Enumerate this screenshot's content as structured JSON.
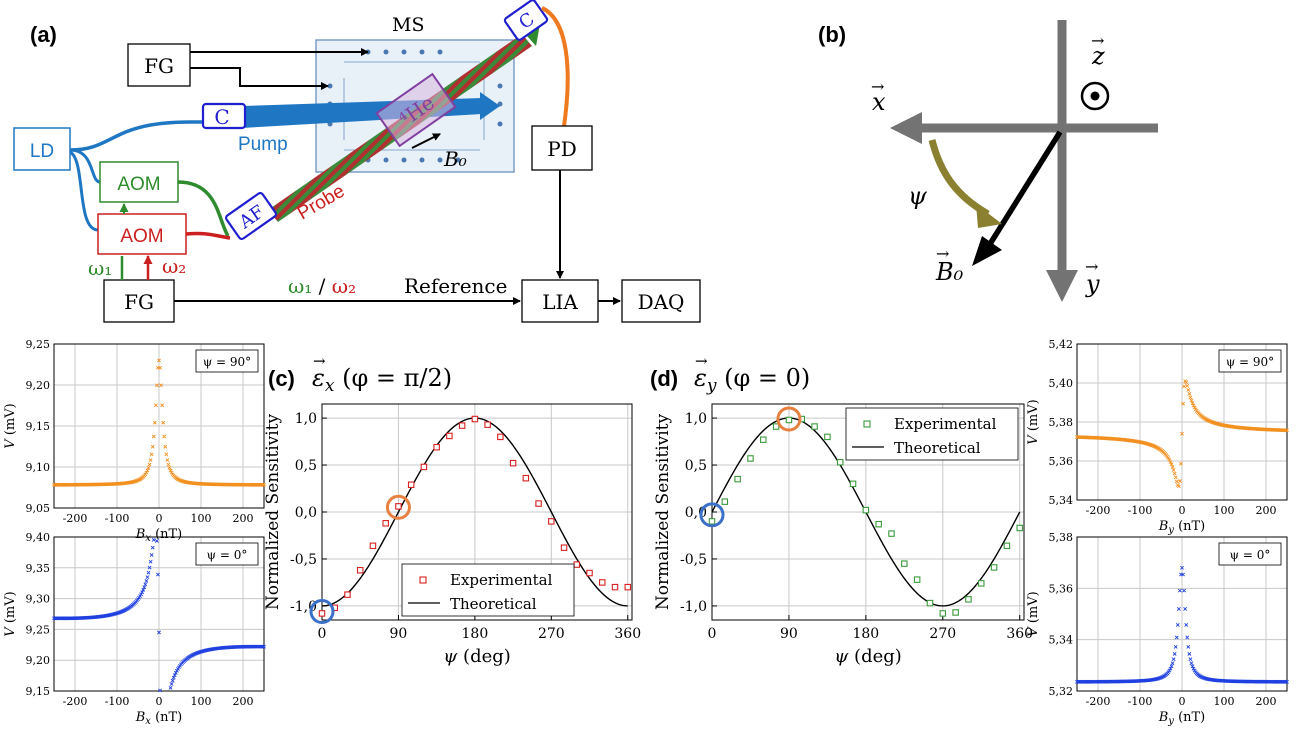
{
  "panel_labels": {
    "a": "(a)",
    "b": "(b)",
    "c": "(c)",
    "d": "(d)"
  },
  "setup": {
    "fg_top": "FG",
    "fg_bottom": "FG",
    "ms": "MS",
    "ld": "LD",
    "aom_green": "AOM",
    "aom_red": "AOM",
    "coupler_pump": "C",
    "coupler_probe": "C",
    "af": "AF",
    "cell": "⁴He",
    "pump": "Pump",
    "probe": "Probe",
    "b0": "B₀",
    "pd": "PD",
    "lia": "LIA",
    "daq": "DAQ",
    "reference": "Reference",
    "omega1": "ω₁",
    "omega2": "ω₂",
    "omega1_ref": "ω₁",
    "omega_slash": " / ",
    "omega2_ref": "ω₂",
    "colors": {
      "pump": "#1f77c4",
      "probe_green": "#3a8a3a",
      "probe_red": "#cc2020",
      "orange": "#f07a20",
      "purple": "#8040a0",
      "ms_box": "#7fa4c8"
    }
  },
  "axes_diagram": {
    "x": "x",
    "y": "y",
    "z": "z",
    "psi": "ψ",
    "b0": "B₀",
    "arrow_color": "#808080",
    "psi_color": "#8a8030"
  },
  "chart_data": [
    {
      "id": "sub_bx_90",
      "type": "scatter",
      "color": "#f29020",
      "legend": "ψ = 90°",
      "xlabel_var": "B",
      "xlabel_sub": "x",
      "xlabel_unit": " (nT)",
      "ylabel_var": "V",
      "ylabel_unit": " (mV)",
      "xlim": [
        -250,
        250
      ],
      "ylim": [
        9.05,
        9.25
      ],
      "xticks": [
        "-200",
        "-100",
        "0",
        "100",
        "200"
      ],
      "yticks": [
        "9,05",
        "9,10",
        "9,15",
        "9,20",
        "9,25"
      ],
      "curve": "lorentzian",
      "params": {
        "baseline": 9.078,
        "amplitude": 0.152,
        "width": 10
      }
    },
    {
      "id": "sub_bx_0",
      "type": "scatter",
      "color": "#2040e0",
      "legend": "ψ = 0°",
      "xlabel_var": "B",
      "xlabel_sub": "x",
      "xlabel_unit": " (nT)",
      "ylabel_var": "V",
      "ylabel_unit": " (mV)",
      "xlim": [
        -250,
        250
      ],
      "ylim": [
        9.15,
        9.4
      ],
      "xticks": [
        "-200",
        "-100",
        "0",
        "100",
        "200"
      ],
      "yticks": [
        "9,15",
        "9,20",
        "9,25",
        "9,30",
        "9,35",
        "9,40"
      ],
      "curve": "dispersive",
      "params": {
        "baseline": 9.245,
        "amplitude": 0.165,
        "width": 8,
        "slope": -5e-05
      }
    },
    {
      "id": "main_c",
      "type": "line",
      "title_var": "ε",
      "title_sub": "x",
      "title_paren": " (φ = π/2)",
      "xlabel_var": "ψ",
      "xlabel_unit": " (deg)",
      "ylabel": "Normalized Sensitivity",
      "xlim": [
        0,
        365
      ],
      "ylim": [
        -1.15,
        1.15
      ],
      "xticks": [
        0,
        90,
        180,
        270,
        360
      ],
      "yticks": [
        "-1,0",
        "-0,5",
        "0,0",
        "0,5",
        "1,0"
      ],
      "ytick_values": [
        -1,
        -0.5,
        0,
        0.5,
        1
      ],
      "series": [
        {
          "name": "Experimental",
          "type": "scatter",
          "color": "#d82020",
          "x": [
            0,
            15,
            30,
            45,
            60,
            75,
            90,
            105,
            120,
            135,
            150,
            165,
            180,
            195,
            210,
            225,
            240,
            255,
            270,
            285,
            300,
            315,
            330,
            345,
            360
          ],
          "y": [
            -1.08,
            -1.02,
            -0.88,
            -0.62,
            -0.36,
            -0.12,
            0.06,
            0.29,
            0.48,
            0.69,
            0.81,
            0.92,
            0.99,
            0.93,
            0.8,
            0.52,
            0.36,
            0.09,
            -0.1,
            -0.38,
            -0.56,
            -0.65,
            -0.75,
            -0.8,
            -0.8
          ]
        },
        {
          "name": "Theoretical",
          "type": "line",
          "color": "#000000",
          "function": "-cos(psi)"
        }
      ],
      "legend_position": "bottom-center",
      "highlights": [
        {
          "x": 0,
          "y": -1.06,
          "color": "#3a70c8"
        },
        {
          "x": 90,
          "y": 0.05,
          "color": "#e88040"
        }
      ]
    },
    {
      "id": "main_d",
      "type": "line",
      "title_var": "ε",
      "title_sub": "y",
      "title_paren": " (φ = 0)",
      "xlabel_var": "ψ",
      "xlabel_unit": " (deg)",
      "ylabel": "Normalized Sensitivity",
      "xlim": [
        0,
        365
      ],
      "ylim": [
        -1.15,
        1.15
      ],
      "xticks": [
        0,
        90,
        180,
        270,
        360
      ],
      "yticks": [
        "-1,0",
        "-0,5",
        "0,0",
        "0,5",
        "1,0"
      ],
      "ytick_values": [
        -1,
        -0.5,
        0,
        0.5,
        1
      ],
      "series": [
        {
          "name": "Experimental",
          "type": "scatter",
          "color": "#3a9a3a",
          "x": [
            0,
            15,
            30,
            45,
            60,
            75,
            90,
            105,
            120,
            135,
            150,
            165,
            180,
            195,
            210,
            225,
            240,
            255,
            270,
            285,
            300,
            315,
            330,
            345,
            360
          ],
          "y": [
            -0.1,
            0.11,
            0.35,
            0.57,
            0.77,
            0.91,
            0.98,
            0.99,
            0.91,
            0.8,
            0.53,
            0.3,
            0.02,
            -0.13,
            -0.23,
            -0.55,
            -0.72,
            -0.97,
            -1.08,
            -1.07,
            -0.93,
            -0.76,
            -0.59,
            -0.36,
            -0.17
          ]
        },
        {
          "name": "Theoretical",
          "type": "line",
          "color": "#000000",
          "function": "sin(psi)"
        }
      ],
      "legend_position": "top-right",
      "highlights": [
        {
          "x": 0,
          "y": -0.03,
          "color": "#3a70c8"
        },
        {
          "x": 90,
          "y": 0.99,
          "color": "#e88040"
        }
      ]
    },
    {
      "id": "sub_by_90",
      "type": "scatter",
      "color": "#f29020",
      "legend": "ψ = 90°",
      "xlabel_var": "B",
      "xlabel_sub": "y",
      "xlabel_unit": " (nT)",
      "ylabel_var": "V",
      "ylabel_unit": " (mV)",
      "xlim": [
        -250,
        250
      ],
      "ylim": [
        5.34,
        5.42
      ],
      "xticks": [
        "-200",
        "-100",
        "0",
        "100",
        "200"
      ],
      "yticks": [
        "5,34",
        "5,36",
        "5,38",
        "5,40",
        "5,42"
      ],
      "curve": "dispersive",
      "params": {
        "baseline": 5.374,
        "amplitude": -0.027,
        "width": 8,
        "slope": 0
      }
    },
    {
      "id": "sub_by_0",
      "type": "scatter",
      "color": "#2040e0",
      "legend": "ψ = 0°",
      "xlabel_var": "B",
      "xlabel_sub": "y",
      "xlabel_unit": " (nT)",
      "ylabel_var": "V",
      "ylabel_unit": " (mV)",
      "xlim": [
        -250,
        250
      ],
      "ylim": [
        5.32,
        5.38
      ],
      "xticks": [
        "-200",
        "-100",
        "0",
        "100",
        "200"
      ],
      "yticks": [
        "5,32",
        "5,34",
        "5,36",
        "5,38"
      ],
      "curve": "lorentzian",
      "params": {
        "baseline": 5.3235,
        "amplitude": 0.0445,
        "width": 10
      }
    }
  ]
}
